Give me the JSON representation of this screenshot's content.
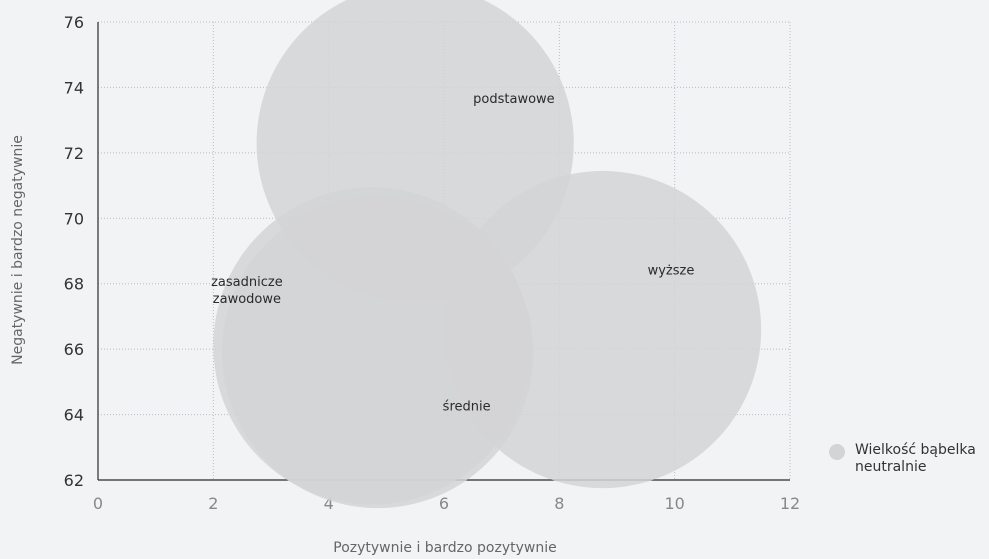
{
  "chart_data": {
    "type": "scatter",
    "xlabel": "Pozytywnie i bardzo pozytywnie",
    "ylabel": "Negatywnie i bardzo negatywnie",
    "xlim": [
      0,
      12
    ],
    "ylim": [
      62,
      76
    ],
    "x_ticks": [
      "0",
      "2",
      "4",
      "6",
      "8",
      "10",
      "12"
    ],
    "y_ticks": [
      "62",
      "64",
      "66",
      "68",
      "70",
      "72",
      "74",
      "76"
    ],
    "grid": true,
    "legend": {
      "placement": "bottom-right",
      "label": "Wielkość bąbelka",
      "sublabel": "neutralnie",
      "color": "#d3d4d6"
    },
    "bubble_color": "#d3d4d6",
    "points": [
      {
        "label": "podstawowe",
        "x": 5.5,
        "y": 72.3,
        "size": 27.5
      },
      {
        "label": "zasadnicze zawodowe",
        "x": 4.75,
        "y": 66.1,
        "size": 27.5
      },
      {
        "label": "średnie",
        "x": 4.85,
        "y": 65.9,
        "size": 27.0
      },
      {
        "label": "wyższe",
        "x": 8.75,
        "y": 66.6,
        "size": 27.5
      }
    ]
  }
}
